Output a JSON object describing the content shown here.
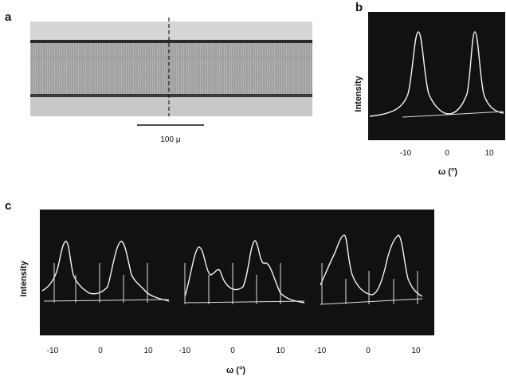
{
  "panels": {
    "a": {
      "label": "a",
      "scale_bar": "100 μ"
    },
    "b": {
      "label": "b",
      "y_label": "Intensity",
      "x_label": "ω (°)",
      "xticks": [
        -10,
        0,
        10
      ]
    },
    "c": {
      "label": "c",
      "y_label": "Intensity",
      "x_label": "ω (°)",
      "xticks": [
        [
          -10,
          0,
          10
        ],
        [
          -10,
          0,
          10
        ],
        [
          -10,
          0,
          10
        ]
      ]
    }
  }
}
